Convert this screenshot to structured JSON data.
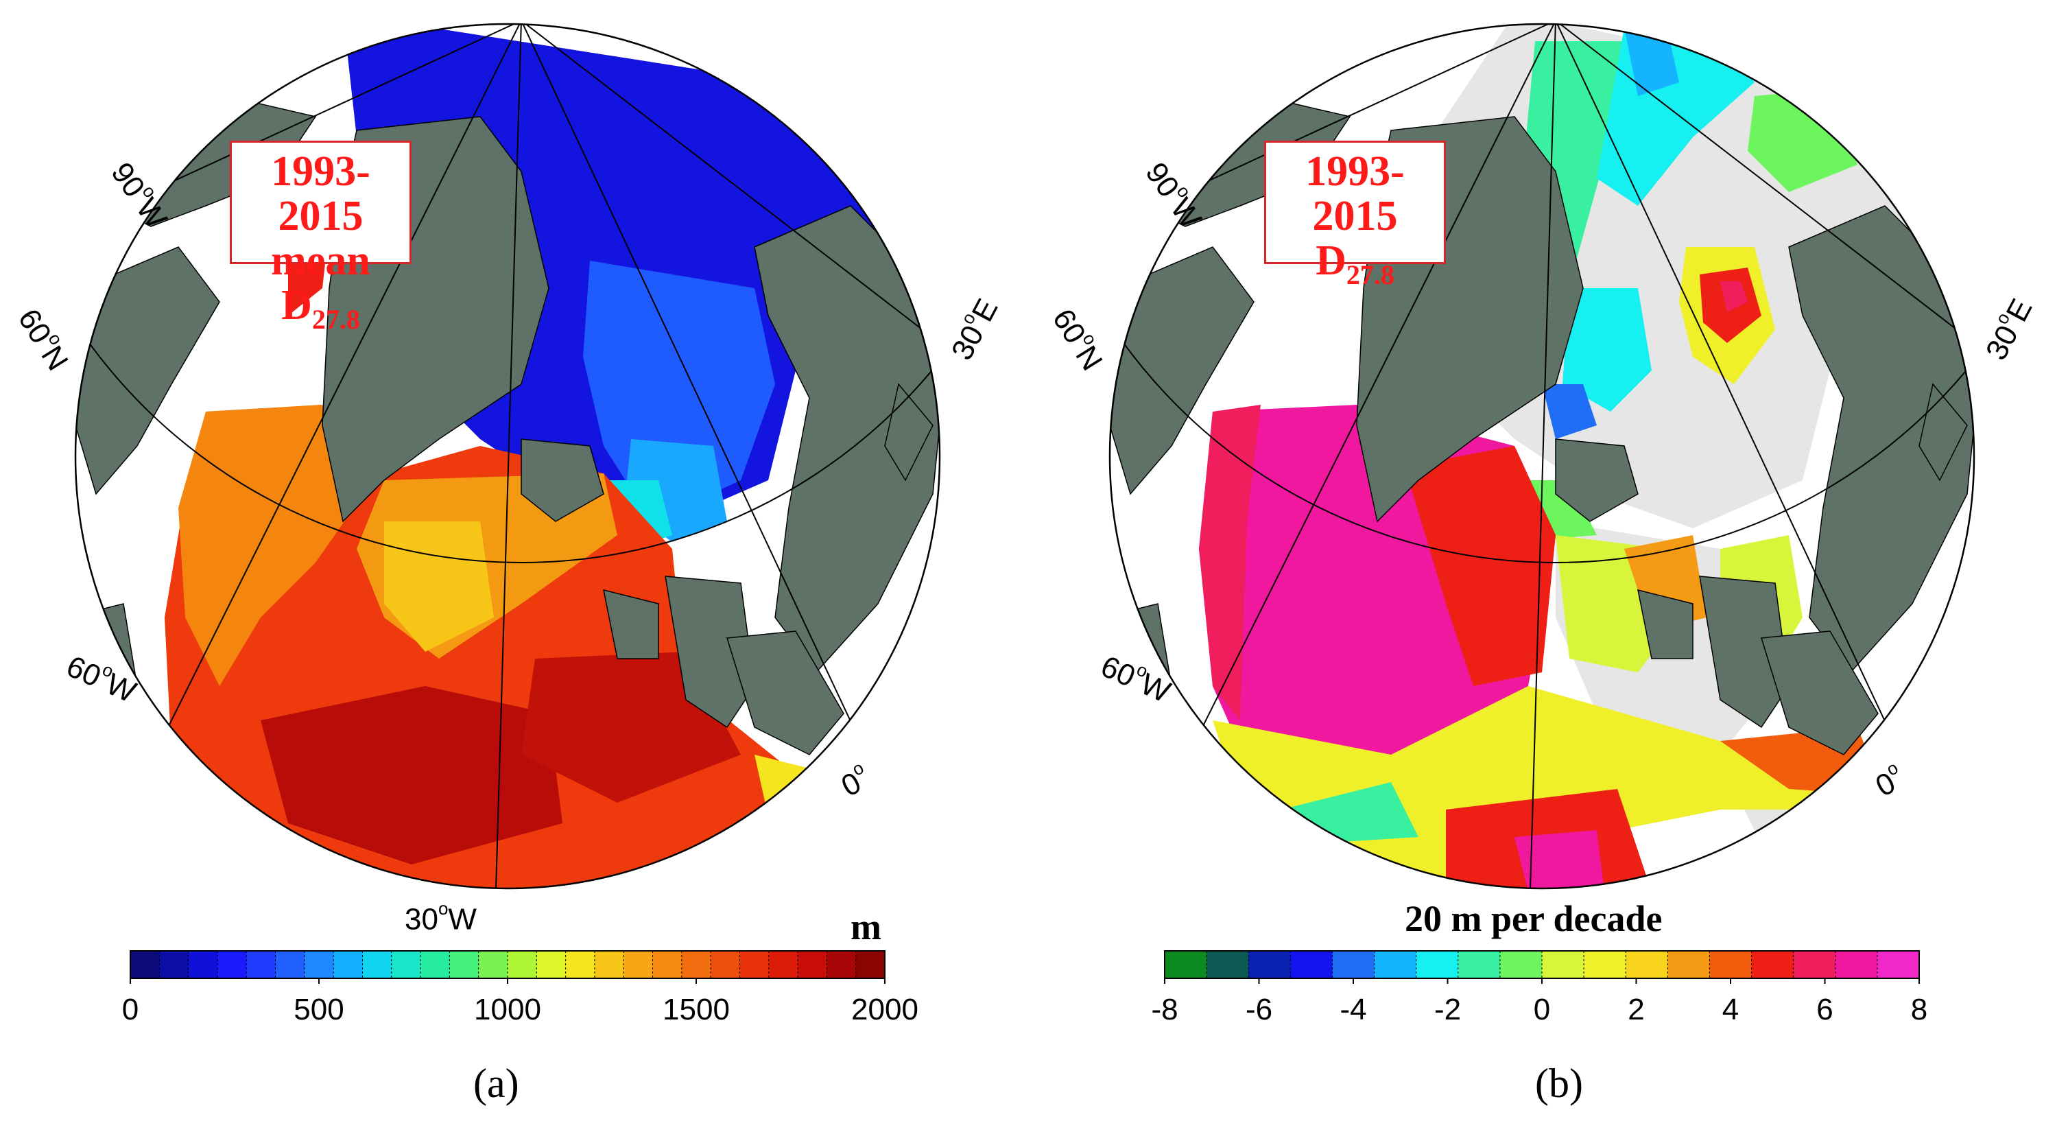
{
  "panel_a": {
    "box_line1": "1993-2015",
    "box_line2": "mean D",
    "box_sub": "27.8",
    "lon_labels": [
      "90",
      "60",
      "30"
    ],
    "lon_suffix": "W",
    "lat_label": "60",
    "lat_suffix": "N",
    "lon_east_label": "30",
    "lon_east_suffix": "E",
    "zero_label": "0",
    "colorbar": {
      "unit": "m",
      "min": 0,
      "max": 2000,
      "ticks": [
        "0",
        "500",
        "1000",
        "1500",
        "2000"
      ],
      "colors": [
        "#0a0a7a",
        "#0d0da8",
        "#1010d8",
        "#1a1aff",
        "#1f3cff",
        "#2060ff",
        "#1f87ff",
        "#14b0ff",
        "#10d4f0",
        "#19e6c8",
        "#26eba0",
        "#47f07a",
        "#7af352",
        "#aef536",
        "#ddf72a",
        "#f4e51f",
        "#f8c519",
        "#f8a516",
        "#f68912",
        "#f26c10",
        "#ee4f0d",
        "#e8330a",
        "#dc1c09",
        "#c80d08",
        "#a80606",
        "#8a0404"
      ],
      "caption": "(a)"
    }
  },
  "panel_b": {
    "box_line1": "1993-2015",
    "box_line2": "D",
    "box_sub": "27.8",
    "lon_labels": [
      "90",
      "60"
    ],
    "lon_suffix": "W",
    "lat_label": "60",
    "lat_suffix": "N",
    "lon_east_label": "30",
    "lon_east_suffix": "E",
    "zero_label": "0",
    "colorbar": {
      "title": "20 m per decade",
      "ticks": [
        "-8",
        "-6",
        "-4",
        "-2",
        "0",
        "2",
        "4",
        "6",
        "8"
      ],
      "colors": [
        "#0c8a1f",
        "#0d5a55",
        "#0b22b0",
        "#1414f0",
        "#1f6ef5",
        "#14b4ff",
        "#17f0f0",
        "#38f0a0",
        "#6cf55c",
        "#d8f53b",
        "#f0f02a",
        "#f8d51c",
        "#f59a14",
        "#f25c0d",
        "#ee1f14",
        "#f01e5c",
        "#f0189e",
        "#f028c8"
      ],
      "caption": "(b)"
    }
  },
  "colors": {
    "land": "#5f7268",
    "ocean_missing": "#ffffff",
    "no_signal": "#e6e6e6",
    "label_red": "#ff1a1a"
  }
}
